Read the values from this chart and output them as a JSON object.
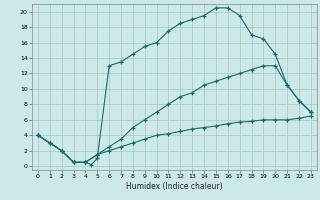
{
  "xlabel": "Humidex (Indice chaleur)",
  "xlim": [
    -0.5,
    23.5
  ],
  "ylim": [
    -0.5,
    21
  ],
  "xticks": [
    0,
    1,
    2,
    3,
    4,
    5,
    6,
    7,
    8,
    9,
    10,
    11,
    12,
    13,
    14,
    15,
    16,
    17,
    18,
    19,
    20,
    21,
    22,
    23
  ],
  "yticks": [
    0,
    2,
    4,
    6,
    8,
    10,
    12,
    14,
    16,
    18,
    20
  ],
  "bg_color": "#cde8e8",
  "grid_color": "#a8cccc",
  "line_color": "#1a6b6b",
  "line1_x": [
    0,
    1,
    2,
    3,
    4,
    4.5,
    5,
    6,
    7,
    8,
    9,
    10,
    11,
    12,
    13,
    14,
    15,
    16,
    17,
    18,
    19,
    20,
    21,
    22,
    23
  ],
  "line1_y": [
    4.0,
    3.0,
    2.0,
    0.5,
    0.5,
    0.2,
    1.0,
    13.0,
    13.5,
    14.5,
    15.5,
    16.0,
    17.5,
    18.5,
    19.0,
    19.5,
    20.5,
    20.5,
    19.5,
    17.0,
    16.5,
    14.5,
    10.5,
    8.5,
    7.0
  ],
  "line2_x": [
    0,
    1,
    2,
    3,
    4,
    5,
    6,
    7,
    8,
    9,
    10,
    11,
    12,
    13,
    14,
    15,
    16,
    17,
    18,
    19,
    20,
    21,
    22,
    23
  ],
  "line2_y": [
    4.0,
    3.0,
    2.0,
    0.5,
    0.5,
    1.5,
    2.5,
    3.5,
    5.0,
    6.0,
    7.0,
    8.0,
    9.0,
    9.5,
    10.5,
    11.0,
    11.5,
    12.0,
    12.5,
    13.0,
    13.0,
    10.5,
    8.5,
    7.0
  ],
  "line3_x": [
    0,
    1,
    2,
    3,
    4,
    5,
    6,
    7,
    8,
    9,
    10,
    11,
    12,
    13,
    14,
    15,
    16,
    17,
    18,
    19,
    20,
    21,
    22,
    23
  ],
  "line3_y": [
    4.0,
    3.0,
    2.0,
    0.5,
    0.5,
    1.5,
    2.0,
    2.5,
    3.0,
    3.5,
    4.0,
    4.2,
    4.5,
    4.8,
    5.0,
    5.2,
    5.5,
    5.7,
    5.8,
    6.0,
    6.0,
    6.0,
    6.2,
    6.5
  ]
}
